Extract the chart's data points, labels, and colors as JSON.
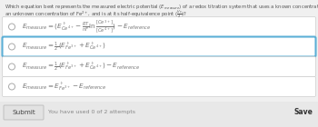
{
  "title_line1": "Which equation best represents the measured electric potential ($E_{measure}$) of a redox titration system that uses a known concentration of Ce$^{4+}$ to titrate",
  "title_line2": "an unknown concentration of Fe$^{2+}$, and is at its half-equivalence point ($\\frac{V_e}{2}$)?",
  "options": [
    "$E_{measure} = (E^\\circ_{Ce^{4+}} - \\frac{RT}{nF}\\ln\\frac{[Ce^{3+}]}{[Ce^{4+}]}) - E_{reference}$",
    "$E_{measure} = \\frac{1}{2}(E^\\circ_{Fe^{3+}} + E^\\circ_{Ce^{4+}})$",
    "$E_{measure} = \\frac{1}{2}(E^\\circ_{Fe^{3+}} + E^\\circ_{Ce^{4+}}) - E_{reference}$",
    "$E_{measure} = E^\\circ_{Fe^{3+}} - E_{reference}$"
  ],
  "selected_index": 1,
  "bg_color": "#f0f0f0",
  "option_bg": "#ffffff",
  "selected_border": "#5bafd6",
  "normal_border": "#cccccc",
  "text_color": "#777777",
  "title_color": "#555555",
  "submit_text": "Submit",
  "attempts_text": "You have used 0 of 2 attempts",
  "save_text": "Save",
  "footer_bg": "#e8e8e8",
  "submit_bg": "#e2e2e2",
  "submit_border": "#bbbbbb"
}
